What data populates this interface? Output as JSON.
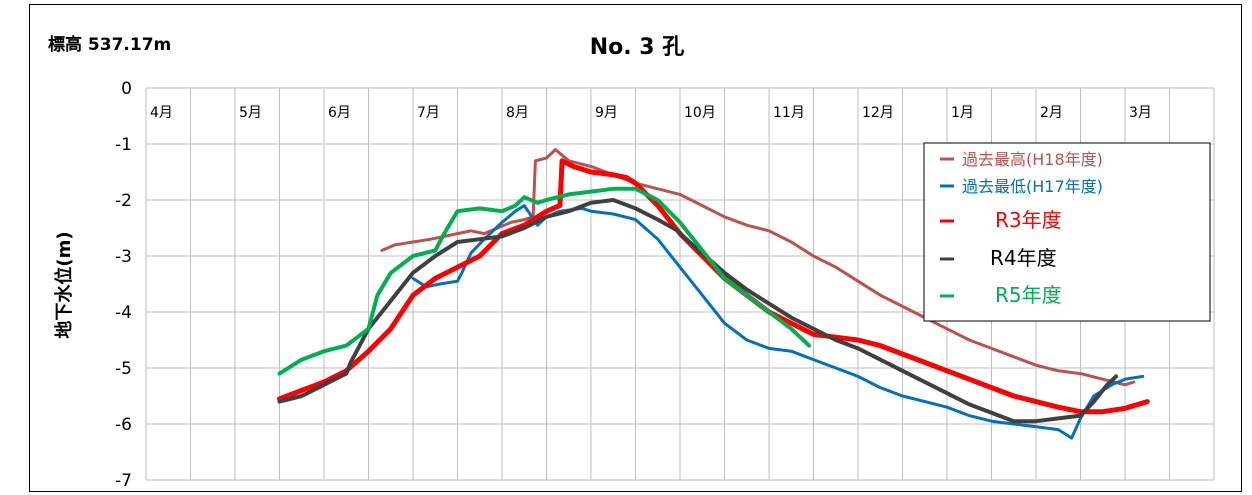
{
  "chart_data": {
    "type": "line",
    "elevation_label": "標高 537.17m",
    "title": "No. 3 孔",
    "xlabel": "",
    "ylabel": "地下水位(m)",
    "ylim": [
      -7,
      0
    ],
    "yticks": [
      0,
      -1,
      -2,
      -3,
      -4,
      -5,
      -6,
      -7
    ],
    "categories": [
      "4月",
      "5月",
      "6月",
      "7月",
      "8月",
      "9月",
      "10月",
      "11月",
      "12月",
      "1月",
      "2月",
      "3月"
    ],
    "grid": true,
    "legend_position": "top-right",
    "series": [
      {
        "name": "過去最高(H18年度)",
        "color": "#c0504d",
        "points": [
          [
            5.3,
            -2.9
          ],
          [
            5.6,
            -2.8
          ],
          [
            6.0,
            -2.75
          ],
          [
            6.4,
            -2.7
          ],
          [
            7.0,
            -2.6
          ],
          [
            7.3,
            -2.55
          ],
          [
            7.6,
            -2.6
          ],
          [
            7.9,
            -2.5
          ],
          [
            8.2,
            -2.4
          ],
          [
            8.5,
            -2.35
          ],
          [
            8.7,
            -2.3
          ],
          [
            8.75,
            -1.3
          ],
          [
            9.0,
            -1.25
          ],
          [
            9.2,
            -1.1
          ],
          [
            9.5,
            -1.3
          ],
          [
            10.0,
            -1.4
          ],
          [
            10.5,
            -1.55
          ],
          [
            11.0,
            -1.7
          ],
          [
            11.5,
            -1.8
          ],
          [
            12.0,
            -1.9
          ],
          [
            12.5,
            -2.1
          ],
          [
            13.0,
            -2.3
          ],
          [
            13.5,
            -2.45
          ],
          [
            14.0,
            -2.55
          ],
          [
            14.5,
            -2.75
          ],
          [
            15.0,
            -3.0
          ],
          [
            15.5,
            -3.2
          ],
          [
            16.0,
            -3.45
          ],
          [
            16.5,
            -3.7
          ],
          [
            17.0,
            -3.9
          ],
          [
            17.5,
            -4.1
          ],
          [
            18.0,
            -4.3
          ],
          [
            18.5,
            -4.5
          ],
          [
            19.0,
            -4.65
          ],
          [
            19.5,
            -4.8
          ],
          [
            20.0,
            -4.95
          ],
          [
            20.5,
            -5.05
          ],
          [
            21.0,
            -5.1
          ],
          [
            21.5,
            -5.2
          ],
          [
            22.0,
            -5.3
          ],
          [
            22.2,
            -5.25
          ]
        ]
      },
      {
        "name": "過去最低(H17年度)",
        "color": "#0070c0",
        "points": [
          [
            6.0,
            -3.4
          ],
          [
            6.3,
            -3.55
          ],
          [
            6.6,
            -3.5
          ],
          [
            7.0,
            -3.45
          ],
          [
            7.1,
            -3.3
          ],
          [
            7.3,
            -2.95
          ],
          [
            7.6,
            -2.7
          ],
          [
            8.0,
            -2.4
          ],
          [
            8.3,
            -2.2
          ],
          [
            8.5,
            -2.1
          ],
          [
            8.8,
            -2.45
          ],
          [
            9.0,
            -2.3
          ],
          [
            9.3,
            -2.2
          ],
          [
            9.8,
            -2.15
          ],
          [
            10.0,
            -2.2
          ],
          [
            10.5,
            -2.25
          ],
          [
            11.0,
            -2.35
          ],
          [
            11.5,
            -2.7
          ],
          [
            12.0,
            -3.2
          ],
          [
            12.5,
            -3.7
          ],
          [
            13.0,
            -4.2
          ],
          [
            13.5,
            -4.5
          ],
          [
            14.0,
            -4.65
          ],
          [
            14.5,
            -4.7
          ],
          [
            15.0,
            -4.85
          ],
          [
            15.5,
            -5.0
          ],
          [
            16.0,
            -5.15
          ],
          [
            16.5,
            -5.35
          ],
          [
            17.0,
            -5.5
          ],
          [
            17.5,
            -5.6
          ],
          [
            18.0,
            -5.7
          ],
          [
            18.5,
            -5.85
          ],
          [
            19.0,
            -5.95
          ],
          [
            19.5,
            -6.0
          ],
          [
            20.0,
            -6.05
          ],
          [
            20.5,
            -6.1
          ],
          [
            20.8,
            -6.25
          ],
          [
            21.0,
            -5.9
          ],
          [
            21.3,
            -5.5
          ],
          [
            21.7,
            -5.3
          ],
          [
            22.0,
            -5.2
          ],
          [
            22.4,
            -5.15
          ]
        ]
      },
      {
        "name": "R3年度",
        "color": "#ff0000",
        "points": [
          [
            3.0,
            -5.55
          ],
          [
            3.5,
            -5.4
          ],
          [
            4.0,
            -5.25
          ],
          [
            4.5,
            -5.05
          ],
          [
            5.0,
            -4.7
          ],
          [
            5.5,
            -4.3
          ],
          [
            6.0,
            -3.7
          ],
          [
            6.5,
            -3.4
          ],
          [
            7.0,
            -3.2
          ],
          [
            7.5,
            -3.0
          ],
          [
            8.0,
            -2.6
          ],
          [
            8.5,
            -2.45
          ],
          [
            9.0,
            -2.2
          ],
          [
            9.3,
            -2.1
          ],
          [
            9.35,
            -1.3
          ],
          [
            9.6,
            -1.4
          ],
          [
            10.0,
            -1.5
          ],
          [
            10.5,
            -1.55
          ],
          [
            10.8,
            -1.6
          ],
          [
            11.0,
            -1.7
          ],
          [
            11.5,
            -2.1
          ],
          [
            12.0,
            -2.6
          ],
          [
            12.5,
            -3.0
          ],
          [
            13.0,
            -3.4
          ],
          [
            13.5,
            -3.7
          ],
          [
            14.0,
            -4.0
          ],
          [
            14.5,
            -4.2
          ],
          [
            15.0,
            -4.4
          ],
          [
            15.5,
            -4.45
          ],
          [
            16.0,
            -4.5
          ],
          [
            16.5,
            -4.6
          ],
          [
            17.0,
            -4.75
          ],
          [
            17.5,
            -4.9
          ],
          [
            18.0,
            -5.05
          ],
          [
            18.5,
            -5.2
          ],
          [
            19.0,
            -5.35
          ],
          [
            19.5,
            -5.5
          ],
          [
            20.0,
            -5.6
          ],
          [
            20.5,
            -5.7
          ],
          [
            21.0,
            -5.78
          ],
          [
            21.5,
            -5.78
          ],
          [
            22.0,
            -5.72
          ],
          [
            22.5,
            -5.6
          ]
        ]
      },
      {
        "name": "R4年度",
        "color": "#404040",
        "points": [
          [
            3.0,
            -5.6
          ],
          [
            3.5,
            -5.5
          ],
          [
            4.0,
            -5.3
          ],
          [
            4.5,
            -5.1
          ],
          [
            4.6,
            -4.9
          ],
          [
            5.0,
            -4.3
          ],
          [
            5.5,
            -3.8
          ],
          [
            6.0,
            -3.3
          ],
          [
            6.5,
            -3.0
          ],
          [
            7.0,
            -2.75
          ],
          [
            7.5,
            -2.7
          ],
          [
            8.0,
            -2.65
          ],
          [
            8.5,
            -2.5
          ],
          [
            9.0,
            -2.3
          ],
          [
            9.5,
            -2.2
          ],
          [
            10.0,
            -2.05
          ],
          [
            10.5,
            -2.0
          ],
          [
            11.0,
            -2.15
          ],
          [
            11.5,
            -2.35
          ],
          [
            11.95,
            -2.55
          ],
          [
            12.0,
            -2.6
          ],
          [
            12.5,
            -2.95
          ],
          [
            13.0,
            -3.3
          ],
          [
            13.5,
            -3.6
          ],
          [
            14.0,
            -3.85
          ],
          [
            14.5,
            -4.1
          ],
          [
            15.0,
            -4.3
          ],
          [
            15.5,
            -4.5
          ],
          [
            16.0,
            -4.65
          ],
          [
            16.5,
            -4.85
          ],
          [
            17.0,
            -5.05
          ],
          [
            17.5,
            -5.25
          ],
          [
            18.0,
            -5.45
          ],
          [
            18.5,
            -5.65
          ],
          [
            19.0,
            -5.8
          ],
          [
            19.5,
            -5.95
          ],
          [
            20.0,
            -5.95
          ],
          [
            20.5,
            -5.9
          ],
          [
            21.0,
            -5.85
          ],
          [
            21.3,
            -5.6
          ],
          [
            21.6,
            -5.3
          ],
          [
            21.8,
            -5.15
          ]
        ]
      },
      {
        "name": "R5年度",
        "color": "#00b050",
        "points": [
          [
            3.0,
            -5.1
          ],
          [
            3.5,
            -4.85
          ],
          [
            4.0,
            -4.7
          ],
          [
            4.5,
            -4.6
          ],
          [
            5.0,
            -4.3
          ],
          [
            5.2,
            -3.7
          ],
          [
            5.5,
            -3.3
          ],
          [
            6.0,
            -3.0
          ],
          [
            6.5,
            -2.9
          ],
          [
            6.7,
            -2.6
          ],
          [
            7.0,
            -2.2
          ],
          [
            7.5,
            -2.15
          ],
          [
            8.0,
            -2.2
          ],
          [
            8.3,
            -2.1
          ],
          [
            8.5,
            -1.95
          ],
          [
            8.8,
            -2.05
          ],
          [
            9.0,
            -2.0
          ],
          [
            9.5,
            -1.9
          ],
          [
            10.0,
            -1.85
          ],
          [
            10.5,
            -1.8
          ],
          [
            11.0,
            -1.8
          ],
          [
            11.5,
            -2.0
          ],
          [
            12.0,
            -2.4
          ],
          [
            12.5,
            -2.9
          ],
          [
            13.0,
            -3.4
          ],
          [
            13.5,
            -3.7
          ],
          [
            14.0,
            -4.0
          ],
          [
            14.5,
            -4.3
          ],
          [
            14.9,
            -4.6
          ]
        ]
      }
    ]
  }
}
